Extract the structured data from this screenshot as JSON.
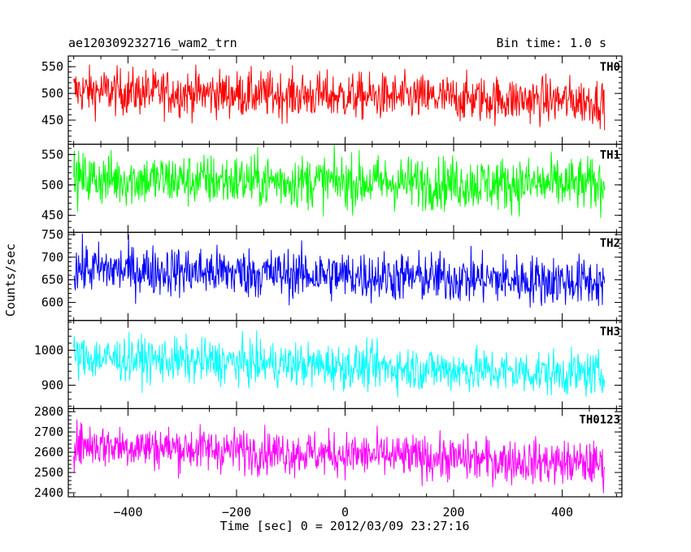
{
  "chart_data": {
    "type": "line",
    "title_left": "ae120309232716_wam2_trn",
    "title_right": "Bin time: 1.0 s",
    "xlabel": "Time [sec] 0 = 2012/03/09 23:27:16",
    "ylabel": "Counts/sec",
    "xlim": [
      -510,
      510
    ],
    "x_ticks": [
      -400,
      -200,
      0,
      200,
      400
    ],
    "x_range_data": [
      -500,
      478
    ],
    "grid": false,
    "panels": [
      {
        "name": "TH0",
        "color": "#ff0000",
        "ylim": [
          405,
          570
        ],
        "y_ticks": [
          450,
          500,
          550
        ],
        "mean_start": 505,
        "mean_end": 485,
        "spread": 22
      },
      {
        "name": "TH1",
        "color": "#00ff00",
        "ylim": [
          422,
          567
        ],
        "y_ticks": [
          450,
          500,
          550
        ],
        "mean_start": 510,
        "mean_end": 500,
        "spread": 22
      },
      {
        "name": "TH2",
        "color": "#0000ff",
        "ylim": [
          560,
          755
        ],
        "y_ticks": [
          600,
          650,
          700,
          750
        ],
        "mean_start": 675,
        "mean_end": 645,
        "spread": 28
      },
      {
        "name": "TH3",
        "color": "#00ffff",
        "ylim": [
          833,
          1085
        ],
        "y_ticks": [
          900,
          1000
        ],
        "mean_start": 980,
        "mean_end": 930,
        "spread": 32
      },
      {
        "name": "TH0123",
        "color": "#ff00ff",
        "ylim": [
          2380,
          2815
        ],
        "y_ticks": [
          2400,
          2500,
          2600,
          2700,
          2800
        ],
        "mean_start": 2640,
        "mean_end": 2540,
        "spread": 55
      }
    ]
  }
}
